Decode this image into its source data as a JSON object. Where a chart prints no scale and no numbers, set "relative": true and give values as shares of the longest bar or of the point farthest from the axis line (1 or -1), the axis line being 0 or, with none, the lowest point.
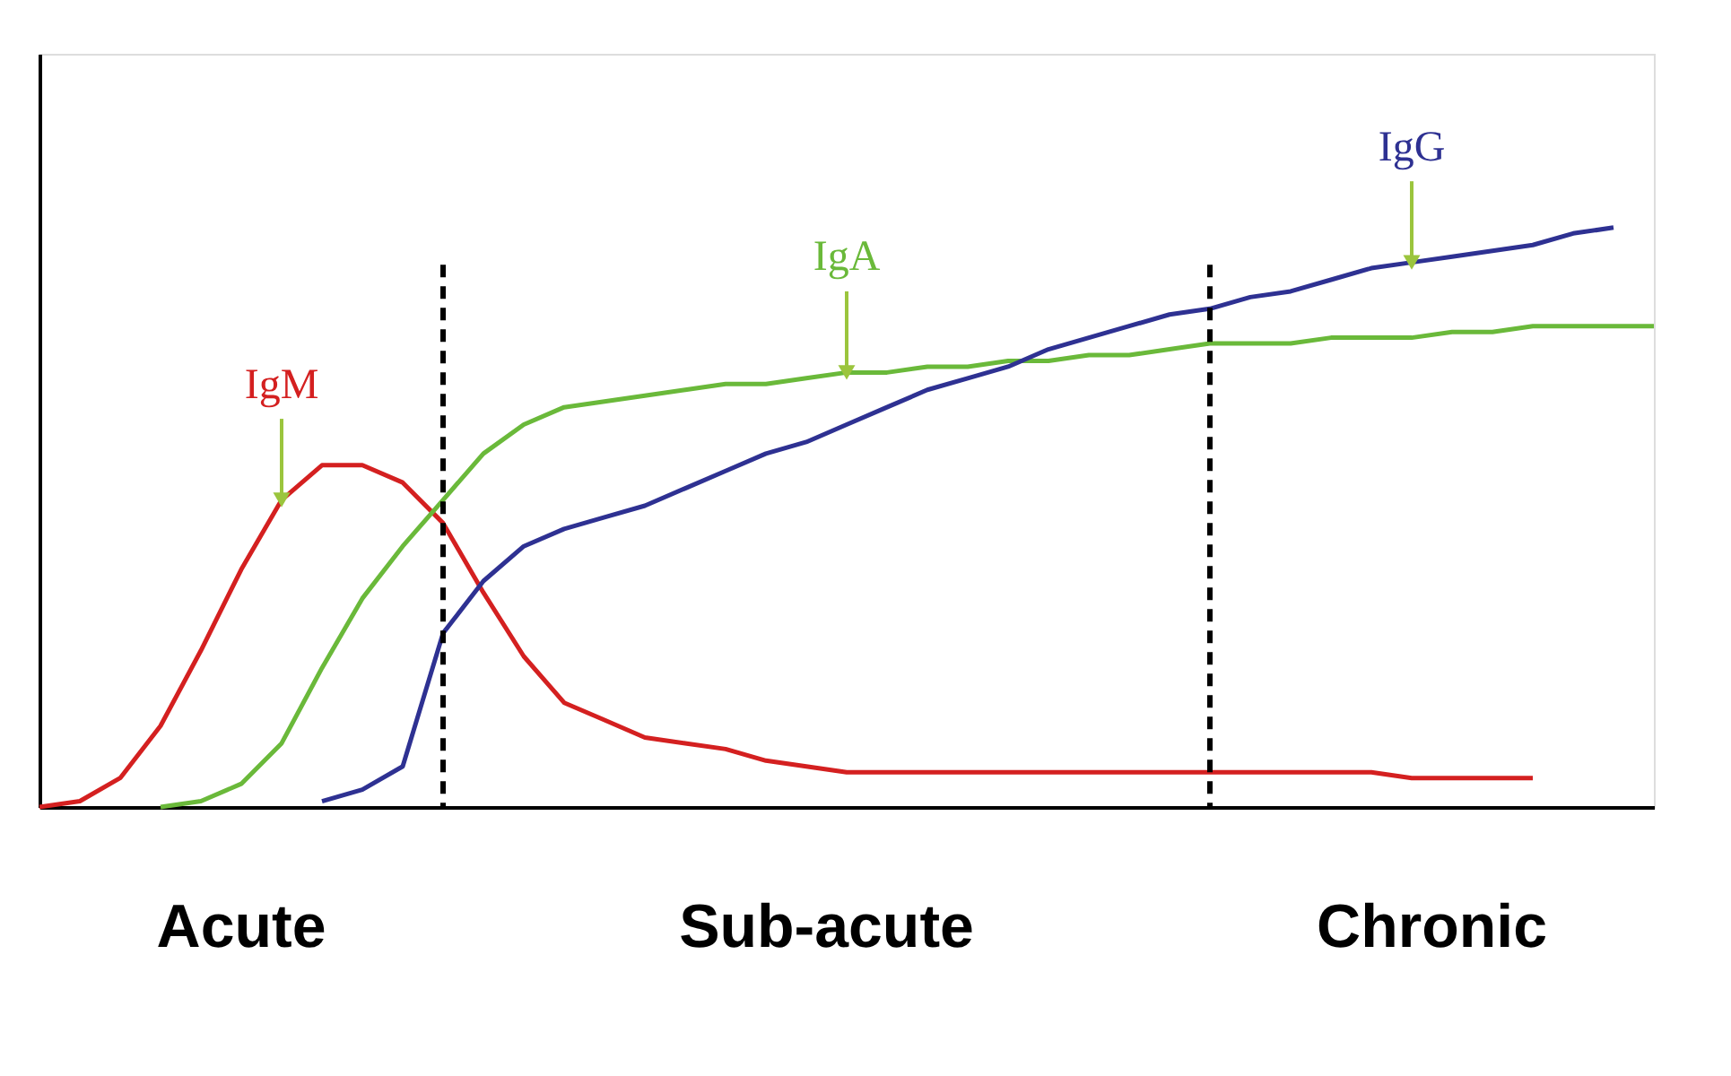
{
  "chart_data": {
    "type": "line",
    "relative": true,
    "tick_labels": false,
    "grid": false,
    "legend": false,
    "marker": "none",
    "line_style": "solid",
    "categories": [
      null,
      null,
      null,
      null,
      null,
      null,
      null,
      null,
      null,
      null,
      null,
      null,
      null,
      null,
      null,
      null,
      null,
      null,
      null,
      null,
      null,
      null,
      null,
      null,
      null,
      null,
      null,
      null,
      null,
      null,
      null,
      null,
      null,
      null,
      null,
      null,
      null,
      null,
      null,
      null,
      null
    ],
    "series": [
      {
        "name": "IgM",
        "color": "#d42020",
        "values": [
          0,
          0.01,
          0.05,
          0.14,
          0.27,
          0.41,
          0.53,
          0.59,
          0.59,
          0.56,
          0.49,
          0.37,
          0.26,
          0.18,
          0.15,
          0.12,
          0.11,
          0.1,
          0.08,
          0.07,
          0.06,
          0.06,
          0.06,
          0.06,
          0.06,
          0.06,
          0.06,
          0.06,
          0.06,
          0.06,
          0.06,
          0.06,
          0.06,
          0.06,
          0.05,
          0.05,
          0.05,
          0.05,
          null,
          null,
          null
        ]
      },
      {
        "name": "IgA",
        "color": "#6ab93a",
        "values": [
          null,
          null,
          null,
          0,
          0.01,
          0.04,
          0.11,
          0.24,
          0.36,
          0.45,
          0.53,
          0.61,
          0.66,
          0.69,
          0.7,
          0.71,
          0.72,
          0.73,
          0.73,
          0.74,
          0.75,
          0.75,
          0.76,
          0.76,
          0.77,
          0.77,
          0.78,
          0.78,
          0.79,
          0.8,
          0.8,
          0.8,
          0.81,
          0.81,
          0.81,
          0.82,
          0.82,
          0.83,
          0.83,
          0.83,
          0.83
        ]
      },
      {
        "name": "IgG",
        "color": "#2e3192",
        "values": [
          null,
          null,
          null,
          null,
          null,
          null,
          null,
          0.01,
          0.03,
          0.07,
          0.3,
          0.39,
          0.45,
          0.48,
          0.5,
          0.52,
          0.55,
          0.58,
          0.61,
          0.63,
          0.66,
          0.69,
          0.72,
          0.74,
          0.76,
          0.79,
          0.81,
          0.83,
          0.85,
          0.86,
          0.88,
          0.89,
          0.91,
          0.93,
          0.94,
          0.95,
          0.96,
          0.97,
          0.99,
          1,
          null
        ]
      }
    ],
    "annotations": [
      "Acute",
      "Sub-acute",
      "Chronic"
    ]
  }
}
